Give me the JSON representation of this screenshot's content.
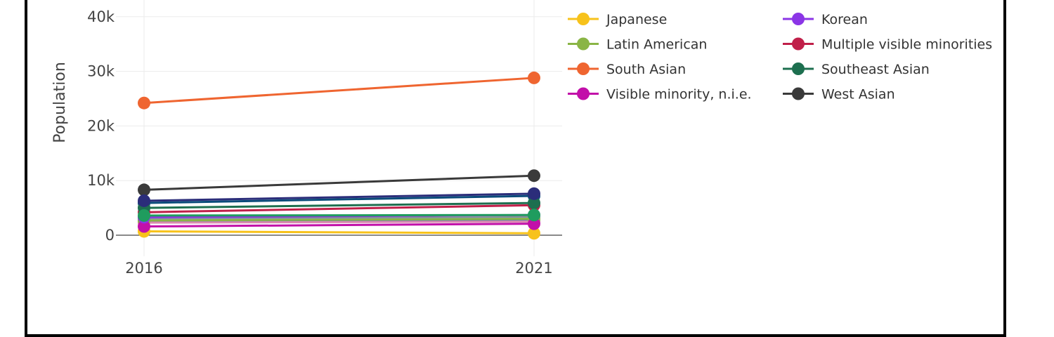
{
  "chart_data": {
    "type": "line",
    "ylabel": "Population",
    "x": [
      "2016",
      "2021"
    ],
    "ylim": [
      -3000,
      40000
    ],
    "yticks": [
      0,
      10000,
      20000,
      30000,
      40000
    ],
    "ytick_labels": [
      "0",
      "10k",
      "20k",
      "30k",
      "40k"
    ],
    "grid": true,
    "legend_position": "right",
    "series": [
      {
        "name": "",
        "color": "#8a8a8a",
        "values": [
          3000,
          3300
        ]
      },
      {
        "name": "",
        "color": "#4a7fb0",
        "values": [
          2500,
          2700
        ]
      },
      {
        "name": "",
        "color": "#7a9bd0",
        "values": [
          2800,
          3100
        ]
      },
      {
        "name": "",
        "color": "#0a4b7a",
        "values": [
          5900,
          7200
        ]
      },
      {
        "name": "",
        "color": "#d98ab0",
        "values": [
          2300,
          2500
        ]
      },
      {
        "name": "Japanese",
        "color": "#f7c21b",
        "values": [
          700,
          350
        ]
      },
      {
        "name": "Latin American",
        "color": "#8ab545",
        "values": [
          2700,
          3000
        ]
      },
      {
        "name": "South Asian",
        "color": "#ef6530",
        "values": [
          24200,
          28800
        ]
      },
      {
        "name": "Visible minority, n.i.e.",
        "color": "#c20fa9",
        "values": [
          1600,
          2100
        ]
      },
      {
        "name": "Korean",
        "color": "#8b35e6",
        "values": [
          3300,
          3700
        ]
      },
      {
        "name": "Multiple visible minorities",
        "color": "#c01f49",
        "values": [
          4200,
          5500
        ]
      },
      {
        "name": "Southeast Asian",
        "color": "#1d6f4f",
        "values": [
          5000,
          5900
        ]
      },
      {
        "name": "West Asian",
        "color": "#3a3a3a",
        "values": [
          8300,
          10900
        ]
      },
      {
        "name": "",
        "color": "#2b2d7a",
        "values": [
          6300,
          7600
        ]
      },
      {
        "name": "",
        "color": "#1f9c5e",
        "values": [
          3600,
          3700
        ]
      }
    ],
    "legend_left": [
      "Japanese",
      "Latin American",
      "South Asian",
      "Visible minority, n.i.e."
    ],
    "legend_right": [
      "Korean",
      "Multiple visible minorities",
      "Southeast Asian",
      "West Asian"
    ]
  }
}
